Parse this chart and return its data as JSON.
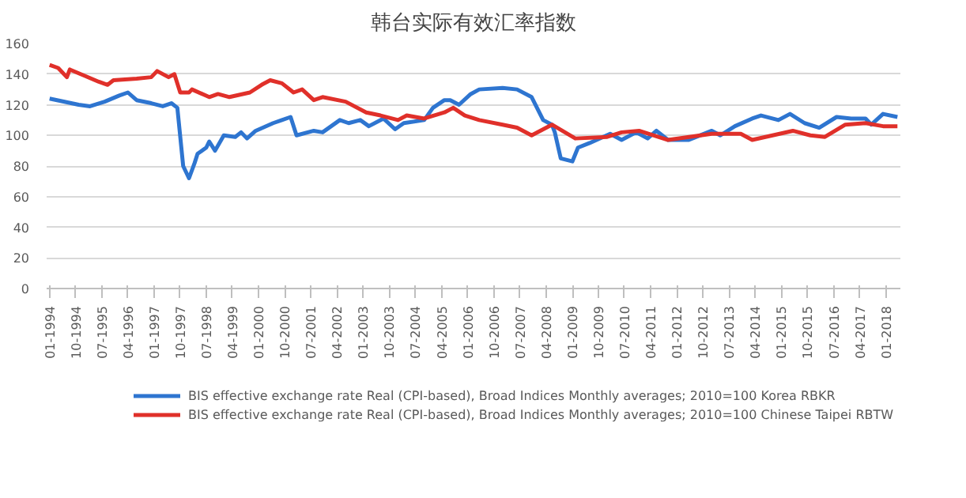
{
  "chart_data": {
    "type": "line",
    "title": "韩台实际有效汇率指数",
    "xlim": [
      "1993-12",
      "2018-06"
    ],
    "xticks": [
      {
        "value": "1994-01",
        "label": "01-1994"
      },
      {
        "value": "1994-10",
        "label": "10-1994"
      },
      {
        "value": "1995-07",
        "label": "07-1995"
      },
      {
        "value": "1996-04",
        "label": "04-1996"
      },
      {
        "value": "1997-01",
        "label": "01-1997"
      },
      {
        "value": "1997-10",
        "label": "10-1997"
      },
      {
        "value": "1998-07",
        "label": "07-1998"
      },
      {
        "value": "1999-04",
        "label": "04-1999"
      },
      {
        "value": "2000-01",
        "label": "01-2000"
      },
      {
        "value": "2000-10",
        "label": "10-2000"
      },
      {
        "value": "2001-07",
        "label": "07-2001"
      },
      {
        "value": "2002-04",
        "label": "04-2002"
      },
      {
        "value": "2003-01",
        "label": "01-2003"
      },
      {
        "value": "2003-10",
        "label": "10-2003"
      },
      {
        "value": "2004-07",
        "label": "07-2004"
      },
      {
        "value": "2005-04",
        "label": "04-2005"
      },
      {
        "value": "2006-01",
        "label": "01-2006"
      },
      {
        "value": "2006-10",
        "label": "10-2006"
      },
      {
        "value": "2007-07",
        "label": "07-2007"
      },
      {
        "value": "2008-04",
        "label": "04-2008"
      },
      {
        "value": "2009-01",
        "label": "01-2009"
      },
      {
        "value": "2009-10",
        "label": "10-2009"
      },
      {
        "value": "2010-07",
        "label": "07-2010"
      },
      {
        "value": "2011-04",
        "label": "04-2011"
      },
      {
        "value": "2012-01",
        "label": "01-2012"
      },
      {
        "value": "2012-10",
        "label": "10-2012"
      },
      {
        "value": "2013-07",
        "label": "07-2013"
      },
      {
        "value": "2014-04",
        "label": "04-2014"
      },
      {
        "value": "2015-01",
        "label": "01-2015"
      },
      {
        "value": "2015-10",
        "label": "10-2015"
      },
      {
        "value": "2016-07",
        "label": "07-2016"
      },
      {
        "value": "2017-04",
        "label": "04-2017"
      },
      {
        "value": "2018-01",
        "label": "01-2018"
      }
    ],
    "ylim": [
      0,
      160
    ],
    "yticks": [
      0,
      20,
      40,
      60,
      80,
      100,
      120,
      140,
      160
    ],
    "grid": "y",
    "legend": "bottom",
    "line_style": "solid",
    "marker": "none",
    "series": [
      {
        "name": "BIS effective exchange rate Real (CPI-based), Broad Indices Monthly averages; 2010=100 Korea RBKR",
        "color": "#2e75d0",
        "x": [
          "1994-01",
          "1994-11",
          "1995-03",
          "1995-08",
          "1996-01",
          "1996-04",
          "1996-07",
          "1996-12",
          "1997-04",
          "1997-07",
          "1997-09",
          "1997-11",
          "1998-01",
          "1998-03",
          "1998-04",
          "1998-07",
          "1998-08",
          "1998-10",
          "1999-01",
          "1999-05",
          "1999-07",
          "1999-09",
          "1999-12",
          "2000-06",
          "2000-09",
          "2000-12",
          "2001-02",
          "2001-08",
          "2001-11",
          "2002-05",
          "2002-08",
          "2002-12",
          "2003-03",
          "2003-08",
          "2003-12",
          "2004-03",
          "2004-10",
          "2005-01",
          "2005-05",
          "2005-07",
          "2005-10",
          "2006-02",
          "2006-05",
          "2007-01",
          "2007-06",
          "2007-11",
          "2008-03",
          "2008-06",
          "2008-07",
          "2008-09",
          "2009-01",
          "2009-03",
          "2009-07",
          "2010-02",
          "2010-06",
          "2010-11",
          "2011-03",
          "2011-06",
          "2011-10",
          "2012-05",
          "2013-01",
          "2013-04",
          "2013-09",
          "2014-03",
          "2014-06",
          "2014-12",
          "2015-04",
          "2015-09",
          "2016-02",
          "2016-08",
          "2017-01",
          "2017-06",
          "2017-08",
          "2017-12",
          "2018-05"
        ],
        "values": [
          124,
          120,
          119,
          122,
          126,
          128,
          123,
          121,
          119,
          121,
          118,
          80,
          72,
          82,
          88,
          92,
          96,
          90,
          100,
          99,
          102,
          98,
          103,
          108,
          110,
          112,
          100,
          103,
          102,
          110,
          108,
          110,
          106,
          111,
          104,
          108,
          110,
          118,
          123,
          123,
          120,
          127,
          130,
          131,
          130,
          125,
          110,
          107,
          102,
          85,
          83,
          92,
          95,
          101,
          97,
          102,
          98,
          103,
          97,
          97,
          103,
          100,
          106,
          111,
          113,
          110,
          114,
          108,
          105,
          112,
          111,
          111,
          107,
          114,
          112
        ]
      },
      {
        "name": "BIS effective exchange rate Real (CPI-based), Broad Indices Monthly averages; 2010=100 Chinese Taipei RBTW",
        "color": "#e0302a",
        "x": [
          "1994-01",
          "1994-04",
          "1994-07",
          "1994-08",
          "1995-01",
          "1995-06",
          "1995-09",
          "1995-11",
          "1996-07",
          "1996-12",
          "1997-02",
          "1997-06",
          "1997-08",
          "1997-10",
          "1998-01",
          "1998-02",
          "1998-08",
          "1998-11",
          "1999-03",
          "1999-10",
          "2000-02",
          "2000-05",
          "2000-09",
          "2001-01",
          "2001-04",
          "2001-08",
          "2001-11",
          "2002-07",
          "2003-02",
          "2003-07",
          "2004-01",
          "2004-04",
          "2004-10",
          "2005-05",
          "2005-08",
          "2005-12",
          "2006-05",
          "2007-01",
          "2007-06",
          "2007-11",
          "2008-06",
          "2009-02",
          "2010-01",
          "2010-06",
          "2010-12",
          "2011-10",
          "2013-01",
          "2013-11",
          "2014-03",
          "2015-05",
          "2015-11",
          "2016-04",
          "2016-11",
          "2017-06",
          "2017-12",
          "2018-05"
        ],
        "values": [
          146,
          144,
          138,
          143,
          139,
          135,
          133,
          136,
          137,
          138,
          142,
          138,
          140,
          128,
          128,
          130,
          125,
          127,
          125,
          128,
          133,
          136,
          134,
          128,
          130,
          123,
          125,
          122,
          115,
          113,
          110,
          113,
          111,
          115,
          118,
          113,
          110,
          107,
          105,
          100,
          107,
          98,
          99,
          102,
          103,
          97,
          101,
          101,
          97,
          103,
          100,
          99,
          107,
          108,
          106,
          106
        ]
      }
    ]
  }
}
